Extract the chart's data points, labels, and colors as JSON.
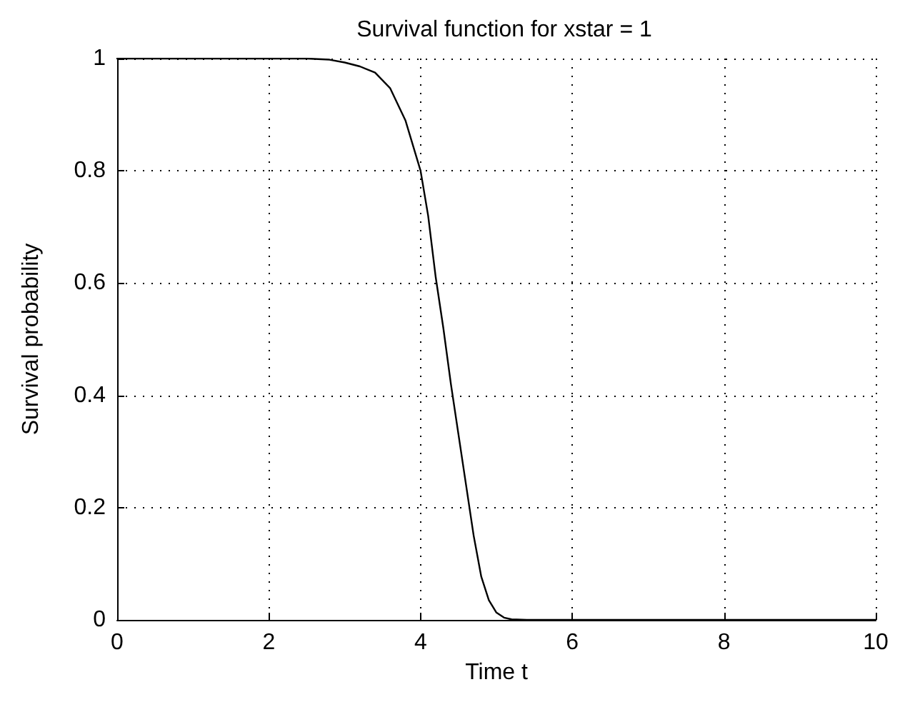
{
  "chart_data": {
    "type": "line",
    "title": "Survival function for xstar = 1",
    "xlabel": "Time t",
    "ylabel": "Survival probability",
    "x": [
      0,
      1,
      2,
      2.5,
      2.8,
      3,
      3.2,
      3.4,
      3.6,
      3.8,
      4,
      4.1,
      4.2,
      4.3,
      4.4,
      4.5,
      4.6,
      4.7,
      4.8,
      4.9,
      5,
      5.1,
      5.2,
      5.4,
      6,
      8,
      10
    ],
    "series": [
      {
        "color": "#000000",
        "values": [
          1,
          1,
          1,
          1,
          0.998,
          0.993,
          0.986,
          0.975,
          0.947,
          0.89,
          0.8,
          0.72,
          0.61,
          0.52,
          0.42,
          0.33,
          0.24,
          0.15,
          0.077,
          0.035,
          0.013,
          0.004,
          0.001,
          0,
          0,
          0,
          0
        ]
      }
    ],
    "xlim": [
      0,
      10
    ],
    "ylim": [
      0,
      1
    ],
    "xticks": [
      0,
      2,
      4,
      6,
      8,
      10
    ],
    "yticks": [
      0,
      0.2,
      0.4,
      0.6,
      0.8,
      1
    ],
    "grid": true,
    "marker": "none",
    "line_style": "solid"
  }
}
